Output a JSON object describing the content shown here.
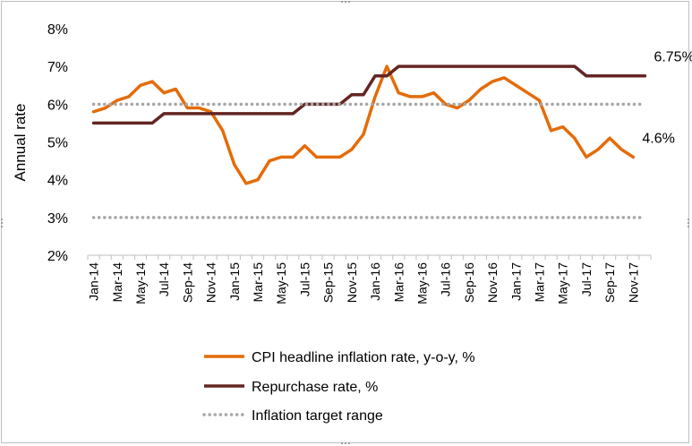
{
  "chart_data": {
    "type": "line",
    "ylabel": "Annual rate",
    "ylim": [
      2,
      8
    ],
    "y_ticks": [
      "2%",
      "3%",
      "4%",
      "5%",
      "6%",
      "7%",
      "8%"
    ],
    "x_tick_labels": [
      "Jan-14",
      "Mar-14",
      "May-14",
      "Jul-14",
      "Sep-14",
      "Nov-14",
      "Jan-15",
      "Mar-15",
      "May-15",
      "Jul-15",
      "Sep-15",
      "Nov-15",
      "Jan-16",
      "Mar-16",
      "May-16",
      "Jul-16",
      "Sep-16",
      "Nov-16",
      "Jan-17",
      "Mar-17",
      "May-17",
      "Jul-17",
      "Sep-17",
      "Nov-17"
    ],
    "x_count": 48,
    "grid": false,
    "legend_position": "bottom",
    "series": [
      {
        "name": "CPI headline inflation rate, y-o-y, %",
        "color": "#E36C0A",
        "style": "solid",
        "values": [
          5.8,
          5.9,
          6.1,
          6.2,
          6.5,
          6.6,
          6.3,
          6.4,
          5.9,
          5.9,
          5.8,
          5.3,
          4.4,
          3.9,
          4.0,
          4.5,
          4.6,
          4.6,
          4.9,
          4.6,
          4.6,
          4.6,
          4.8,
          5.2,
          6.2,
          7.0,
          6.3,
          6.2,
          6.2,
          6.3,
          6.0,
          5.9,
          6.1,
          6.4,
          6.6,
          6.7,
          6.5,
          6.3,
          6.1,
          5.3,
          5.4,
          5.1,
          4.6,
          4.8,
          5.1,
          4.8,
          4.6
        ],
        "end_label": "4.6%"
      },
      {
        "name": "Repurchase rate, %",
        "color": "#632523",
        "style": "solid",
        "values": [
          5.5,
          5.5,
          5.5,
          5.5,
          5.5,
          5.5,
          5.75,
          5.75,
          5.75,
          5.75,
          5.75,
          5.75,
          5.75,
          5.75,
          5.75,
          5.75,
          5.75,
          5.75,
          6.0,
          6.0,
          6.0,
          6.0,
          6.25,
          6.25,
          6.75,
          6.75,
          7.0,
          7.0,
          7.0,
          7.0,
          7.0,
          7.0,
          7.0,
          7.0,
          7.0,
          7.0,
          7.0,
          7.0,
          7.0,
          7.0,
          7.0,
          7.0,
          6.75,
          6.75,
          6.75,
          6.75,
          6.75,
          6.75
        ],
        "end_label": "6.75%"
      },
      {
        "name": "Inflation target range",
        "color": "#A6A6A6",
        "style": "dotted",
        "bands": [
          6,
          3
        ]
      }
    ]
  }
}
